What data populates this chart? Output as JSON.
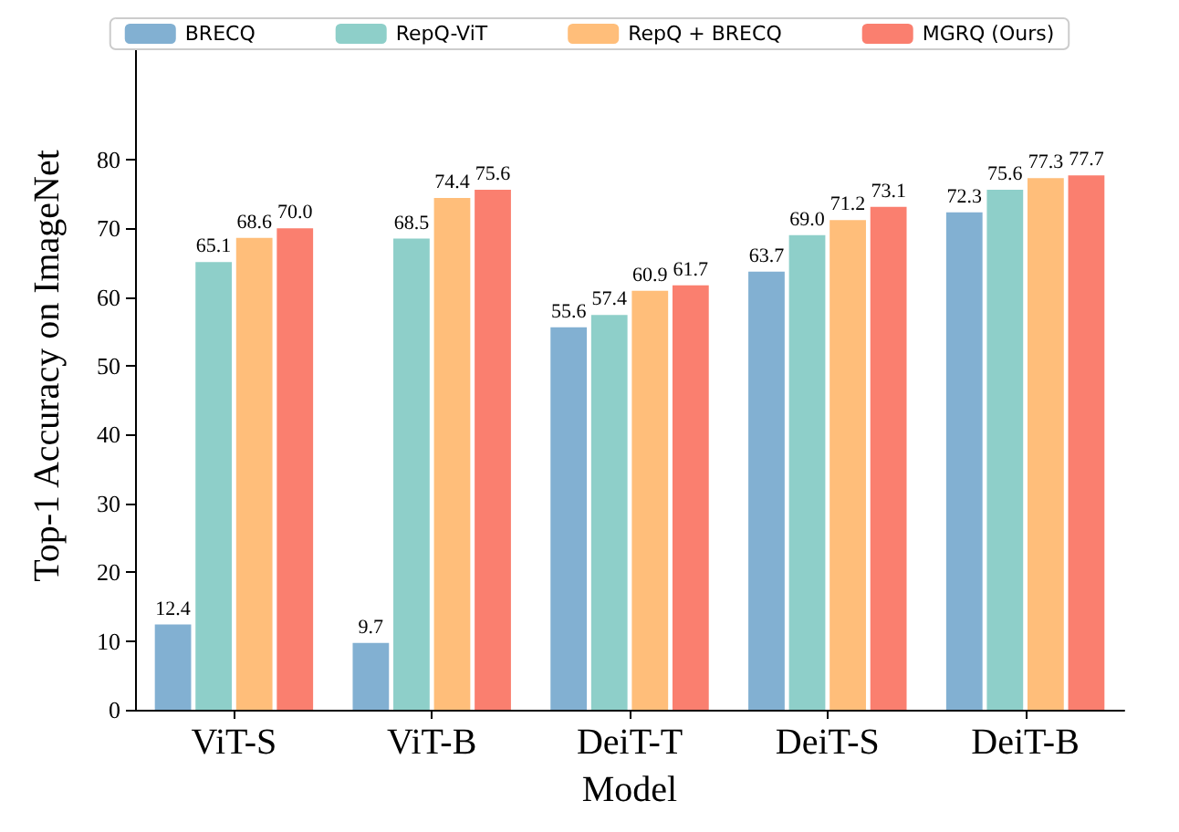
{
  "chart_data": {
    "type": "bar",
    "xlabel": "Model",
    "ylabel": "Top-1 Accuracy on ImageNet",
    "categories": [
      "ViT-S",
      "ViT-B",
      "DeiT-T",
      "DeiT-S",
      "DeiT-B"
    ],
    "series": [
      {
        "name": "BRECQ",
        "color": "#82b0d2",
        "values": [
          12.4,
          9.7,
          55.6,
          63.7,
          72.3
        ]
      },
      {
        "name": "RepQ-ViT",
        "color": "#8ecfc9",
        "values": [
          65.1,
          68.5,
          57.4,
          69.0,
          75.6
        ]
      },
      {
        "name": "RepQ + BRECQ",
        "color": "#ffbe7a",
        "values": [
          68.6,
          74.4,
          60.9,
          71.2,
          77.3
        ]
      },
      {
        "name": "MGRQ (Ours)",
        "color": "#fa7f6f",
        "values": [
          70.0,
          75.6,
          61.7,
          73.1,
          77.7
        ]
      }
    ],
    "value_labels": [
      [
        "12.4",
        "9.7",
        "55.6",
        "63.7",
        "72.3"
      ],
      [
        "65.1",
        "68.5",
        "57.4",
        "69.0",
        "75.6"
      ],
      [
        "68.6",
        "74.4",
        "60.9",
        "71.2",
        "77.3"
      ],
      [
        "70.0",
        "75.6",
        "61.7",
        "73.1",
        "77.7"
      ]
    ],
    "ylim": [
      0,
      100
    ],
    "yticks": [
      0,
      10,
      20,
      30,
      40,
      50,
      60,
      70,
      80
    ],
    "legend": "top",
    "grid": false
  }
}
